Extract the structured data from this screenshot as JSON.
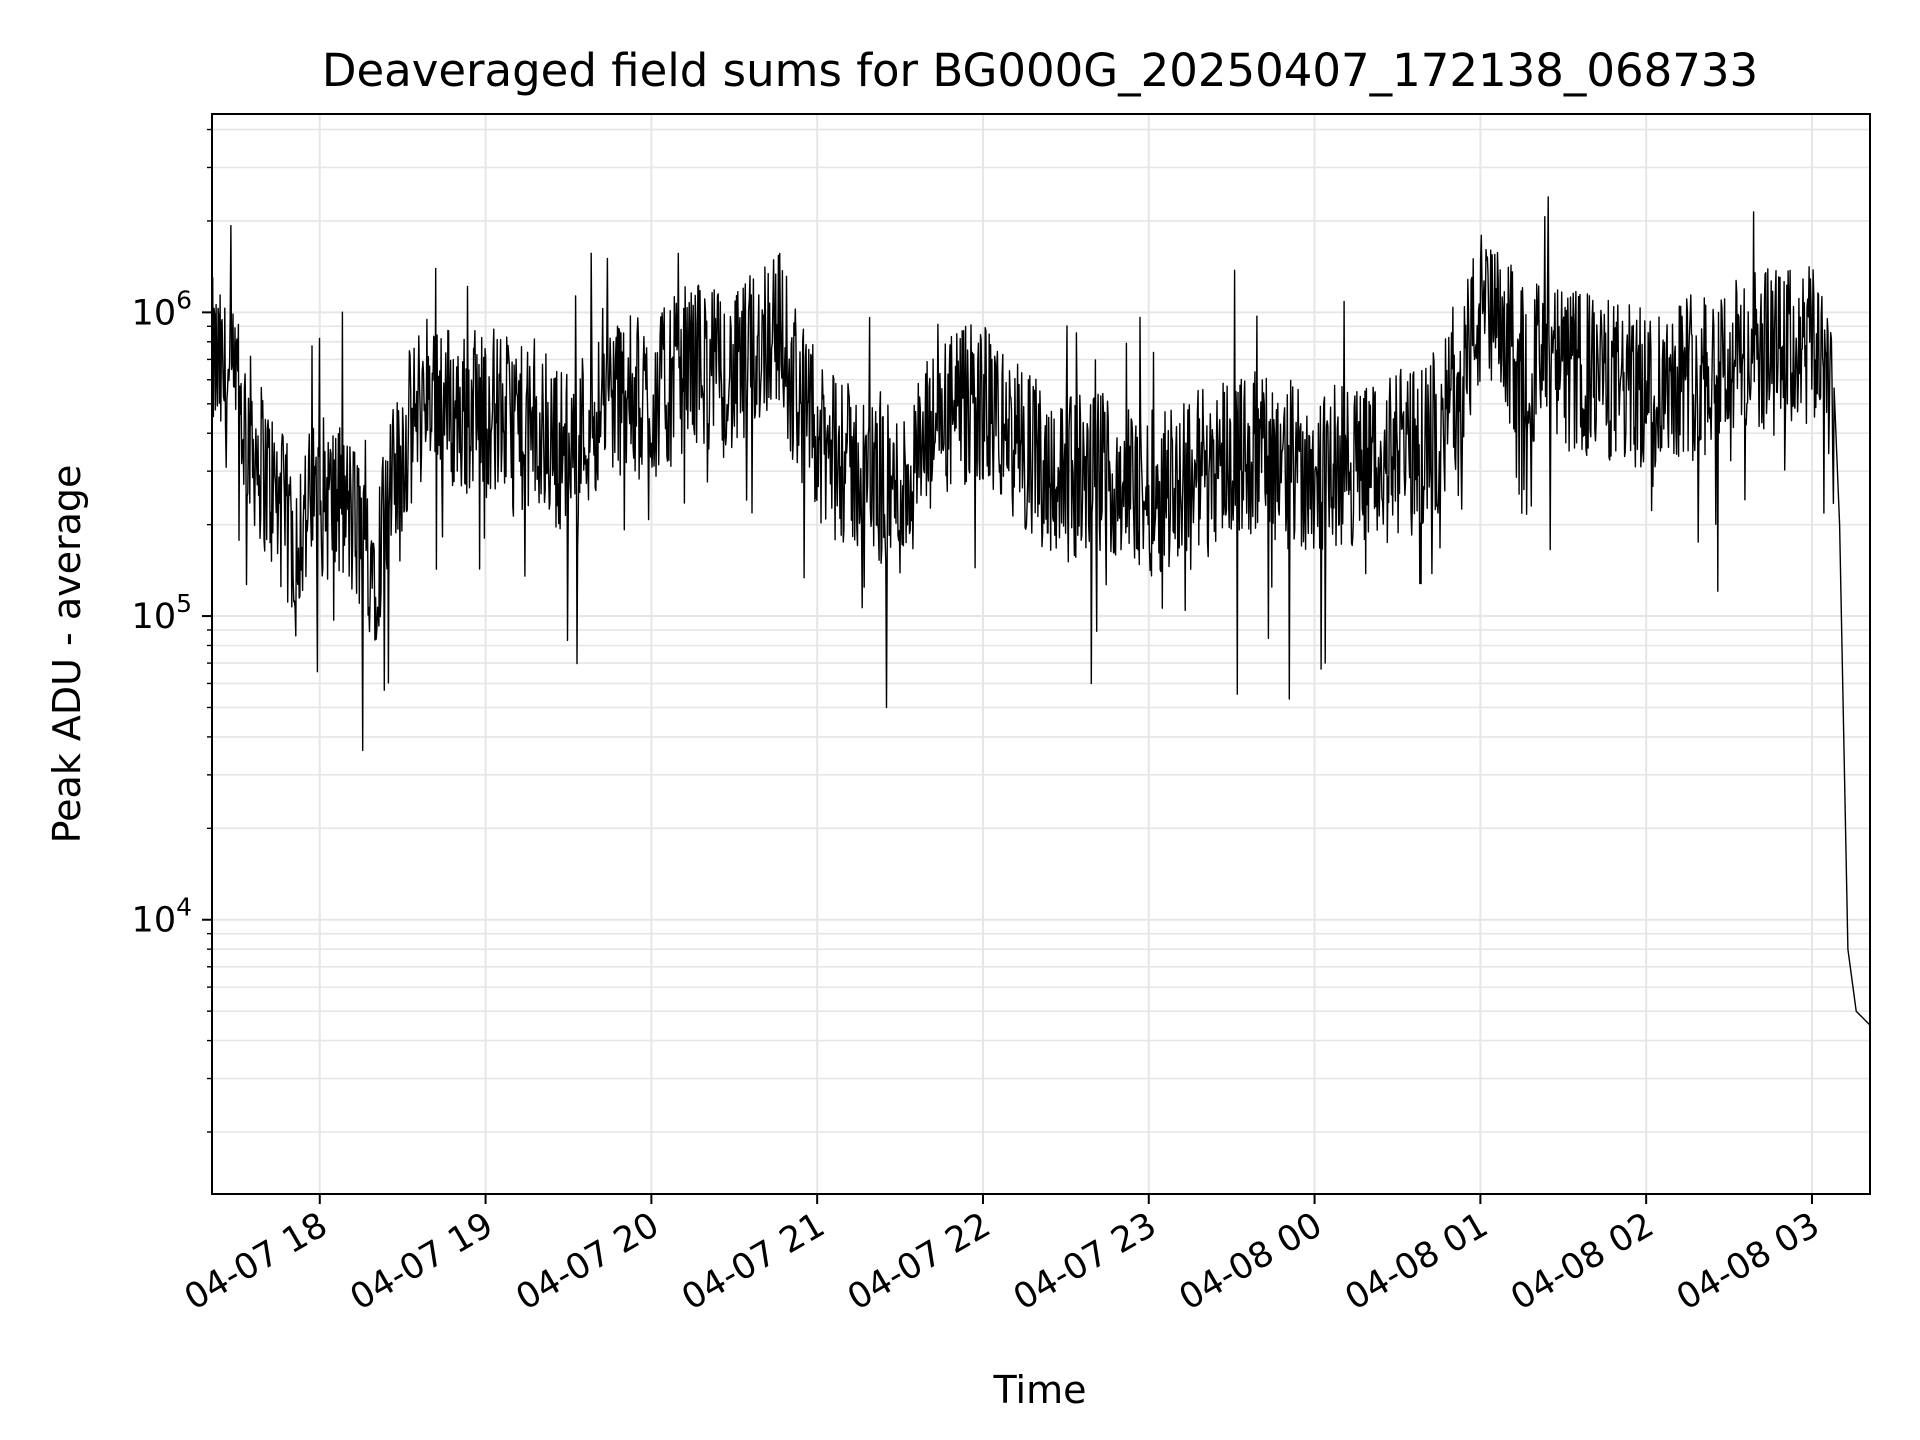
{
  "chart_data": {
    "type": "line",
    "title": "Deaveraged field sums for BG000G_20250407_172138_068733",
    "xlabel": "Time",
    "ylabel": "Peak ADU - average",
    "yscale": "log",
    "grid": true,
    "line_color": "#000000",
    "grid_color": "#e6e6e6",
    "xlim": [
      "2025-04-07 17:21",
      "2025-04-08 03:21"
    ],
    "ylim": [
      1250,
      45000
    ],
    "ylim_note_units": "ADU",
    "ylim_full": [
      1250,
      4500000
    ],
    "x_ticks": [
      "04-07 18",
      "04-07 19",
      "04-07 20",
      "04-07 21",
      "04-07 22",
      "04-07 23",
      "04-08 00",
      "04-08 01",
      "04-08 02",
      "04-08 03"
    ],
    "y_ticks": [
      {
        "base": "10",
        "exp": "4",
        "value": 10000
      },
      {
        "base": "10",
        "exp": "5",
        "value": 100000
      },
      {
        "base": "10",
        "exp": "6",
        "value": 1000000
      }
    ],
    "series": [
      {
        "x": [
          "2025-04-07 17:21",
          "2025-04-07 17:30",
          "2025-04-07 17:40",
          "2025-04-07 17:50",
          "2025-04-07 18:00",
          "2025-04-07 18:10",
          "2025-04-07 18:20",
          "2025-04-07 18:30",
          "2025-04-07 18:40",
          "2025-04-07 18:50",
          "2025-04-07 19:00",
          "2025-04-07 19:15",
          "2025-04-07 19:30",
          "2025-04-07 19:45",
          "2025-04-07 20:00",
          "2025-04-07 20:15",
          "2025-04-07 20:30",
          "2025-04-07 20:45",
          "2025-04-07 21:00",
          "2025-04-07 21:15",
          "2025-04-07 21:30",
          "2025-04-07 21:45",
          "2025-04-07 22:00",
          "2025-04-07 22:15",
          "2025-04-07 22:30",
          "2025-04-07 22:45",
          "2025-04-07 23:00",
          "2025-04-07 23:15",
          "2025-04-07 23:30",
          "2025-04-07 23:45",
          "2025-04-08 00:00",
          "2025-04-08 00:15",
          "2025-04-08 00:30",
          "2025-04-08 00:45",
          "2025-04-08 01:00",
          "2025-04-08 01:15",
          "2025-04-08 01:30",
          "2025-04-08 01:45",
          "2025-04-08 02:00",
          "2025-04-08 02:15",
          "2025-04-08 02:30",
          "2025-04-08 02:45",
          "2025-04-08 03:00",
          "2025-04-08 03:05",
          "2025-04-08 03:10",
          "2025-04-08 03:13",
          "2025-04-08 03:16",
          "2025-04-08 03:21"
        ],
        "y": [
          700000,
          500000,
          300000,
          180000,
          250000,
          220000,
          150000,
          350000,
          600000,
          450000,
          500000,
          400000,
          350000,
          550000,
          500000,
          700000,
          600000,
          950000,
          350000,
          300000,
          250000,
          450000,
          500000,
          350000,
          280000,
          300000,
          250000,
          300000,
          350000,
          330000,
          300000,
          320000,
          330000,
          380000,
          1000000,
          700000,
          650000,
          600000,
          550000,
          650000,
          700000,
          750000,
          750000,
          800000,
          200000,
          8000,
          5000,
          4500
        ]
      }
    ]
  }
}
